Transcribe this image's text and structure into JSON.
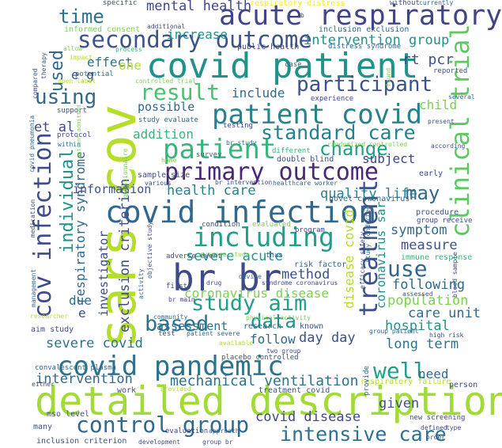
{
  "words": [
    {
      "text": "detailed description",
      "color": "#a2da37"
    },
    {
      "text": "sars cov",
      "color": "#b5de2b"
    },
    {
      "text": "covid patient",
      "color": "#21918c"
    },
    {
      "text": "br br",
      "color": "#3e4a89"
    },
    {
      "text": "covid infection",
      "color": "#31688e"
    },
    {
      "text": "acute respiratory",
      "color": "#414487"
    },
    {
      "text": "secondary outcome",
      "color": "#3b528b"
    },
    {
      "text": "primary outcome",
      "color": "#482878"
    },
    {
      "text": "patient covid",
      "color": "#26828e"
    },
    {
      "text": "covid pandemic",
      "color": "#2c728e"
    },
    {
      "text": "patient",
      "color": "#35b779"
    },
    {
      "text": "including",
      "color": "#1fa088"
    },
    {
      "text": "clinical trial",
      "color": "#5ec962"
    },
    {
      "text": "treatment",
      "color": "#3b528b"
    },
    {
      "text": "cov infection",
      "color": "#3e4a89"
    },
    {
      "text": "control group",
      "color": "#31688e"
    },
    {
      "text": "intensive care",
      "color": "#2c728e"
    },
    {
      "text": "study aim",
      "color": "#1fa088"
    },
    {
      "text": "based",
      "color": "#2c728e"
    },
    {
      "text": "participant",
      "color": "#3b528b"
    },
    {
      "text": "standard care",
      "color": "#26828e"
    },
    {
      "text": "result",
      "color": "#4ac16d"
    },
    {
      "text": "using",
      "color": "#31688e"
    },
    {
      "text": "time",
      "color": "#2c728e"
    },
    {
      "text": "change",
      "color": "#1f9e89"
    },
    {
      "text": "use",
      "color": "#31688e"
    },
    {
      "text": "well",
      "color": "#1fa088"
    },
    {
      "text": "data",
      "color": "#21918c"
    },
    {
      "text": "may",
      "color": "#31688e"
    },
    {
      "text": "mechanical ventilation",
      "color": "#2c728e"
    },
    {
      "text": "individual",
      "color": "#21918c"
    },
    {
      "text": "coronavirus disease",
      "color": "#7ad151"
    },
    {
      "text": "used",
      "color": "#31688e"
    },
    {
      "text": "mental health",
      "color": "#3e4a89"
    },
    {
      "text": "intervention group",
      "color": "#21918c"
    },
    {
      "text": "rt pcr",
      "color": "#3b528b"
    },
    {
      "text": "health care",
      "color": "#26828e"
    },
    {
      "text": "quality life",
      "color": "#26828e"
    },
    {
      "text": "severe acute",
      "color": "#21918c"
    },
    {
      "text": "exclusion criterion",
      "color": "#3e4a89"
    },
    {
      "text": "respiratory syndrome",
      "color": "#31688e"
    },
    {
      "text": "severe covid",
      "color": "#2c728e"
    },
    {
      "text": "intervention",
      "color": "#31688e"
    },
    {
      "text": "covid disease",
      "color": "#3e4a89"
    },
    {
      "text": "long term",
      "color": "#2c728e"
    },
    {
      "text": "day day",
      "color": "#3b528b"
    },
    {
      "text": "population",
      "color": "#7ad151"
    },
    {
      "text": "hospital",
      "color": "#21918c"
    },
    {
      "text": "care unit",
      "color": "#31688e"
    },
    {
      "text": "following",
      "color": "#31688e"
    },
    {
      "text": "measure",
      "color": "#3b528b"
    },
    {
      "text": "symptom",
      "color": "#31688e"
    },
    {
      "text": "method",
      "color": "#3b528b"
    },
    {
      "text": "information",
      "color": "#3b528b"
    },
    {
      "text": "assessment",
      "color": "#2c728e"
    },
    {
      "text": "investigator",
      "color": "#3e4a89"
    },
    {
      "text": "follow",
      "color": "#31688e"
    },
    {
      "text": "given",
      "color": "#3b528b"
    },
    {
      "text": "need",
      "color": "#31688e"
    },
    {
      "text": "child",
      "color": "#7ad151"
    },
    {
      "text": "subject",
      "color": "#414487"
    },
    {
      "text": "increase",
      "color": "#21918c"
    },
    {
      "text": "effect",
      "color": "#2c728e"
    },
    {
      "text": "addition",
      "color": "#35b779"
    },
    {
      "text": "possible",
      "color": "#31688e"
    },
    {
      "text": "include",
      "color": "#31688e"
    },
    {
      "text": "et al",
      "color": "#3e4a89"
    },
    {
      "text": "e g",
      "color": "#3b528b"
    },
    {
      "text": "one",
      "color": "#b5de2b"
    },
    {
      "text": "due",
      "color": "#31688e"
    },
    {
      "text": "e",
      "color": "#3e4a89"
    },
    {
      "text": "disease covid",
      "color": "#b5de2b"
    },
    {
      "text": "coronavirus sar",
      "color": "#21918c"
    },
    {
      "text": "respiratory distress",
      "color": "#fde725"
    },
    {
      "text": "informed consent",
      "color": "#7ad151"
    },
    {
      "text": "inclusion exclusion",
      "color": "#31688e"
    },
    {
      "text": "public health",
      "color": "#3e4a89"
    },
    {
      "text": "distress syndrome",
      "color": "#31688e"
    },
    {
      "text": "study evaluate",
      "color": "#31688e"
    },
    {
      "text": "sample size",
      "color": "#3e4a89"
    },
    {
      "text": "double blind",
      "color": "#3e4a89"
    },
    {
      "text": "novel coronavirus",
      "color": "#31688e"
    },
    {
      "text": "risk factor",
      "color": "#31688e"
    },
    {
      "text": "immune response",
      "color": "#35b779"
    },
    {
      "text": "research",
      "color": "#31688e"
    },
    {
      "text": "known",
      "color": "#3b528b"
    },
    {
      "text": "work",
      "color": "#3e4a89"
    },
    {
      "text": "treatment covid",
      "color": "#3b528b"
    },
    {
      "text": "respiratory failure",
      "color": "#b5de2b"
    },
    {
      "text": "person",
      "color": "#3e4a89"
    },
    {
      "text": "new screening",
      "color": "#3e4a89"
    },
    {
      "text": "inclusion criterion",
      "color": "#3b528b"
    },
    {
      "text": "many",
      "color": "#3b528b"
    },
    {
      "text": "mso level",
      "color": "#3b528b"
    },
    {
      "text": "convalescent plasma",
      "color": "#31688e"
    },
    {
      "text": "aim study",
      "color": "#3e4a89"
    },
    {
      "text": "specific",
      "color": "#3b528b"
    },
    {
      "text": "without",
      "color": "#3b528b"
    },
    {
      "text": "currently",
      "color": "#31688e"
    },
    {
      "text": "process",
      "color": "#35b779"
    },
    {
      "text": "additional",
      "color": "#3e4a89"
    },
    {
      "text": "allow",
      "color": "#7ad151"
    },
    {
      "text": "impact",
      "color": "#b5de2b"
    },
    {
      "text": "case",
      "color": "#31688e"
    },
    {
      "text": "potential",
      "color": "#31688e"
    },
    {
      "text": "reported",
      "color": "#3b528b"
    },
    {
      "text": "experience",
      "color": "#3e4a89"
    },
    {
      "text": "controlled trial",
      "color": "#7ad151"
    },
    {
      "text": "several",
      "color": "#31688e"
    },
    {
      "text": "present",
      "color": "#3b528b"
    },
    {
      "text": "support",
      "color": "#3b528b"
    },
    {
      "text": "testing",
      "color": "#3e4a89"
    },
    {
      "text": "br study",
      "color": "#31688e"
    },
    {
      "text": "randomized controlled",
      "color": "#7ad151"
    },
    {
      "text": "protocol",
      "color": "#3e4a89"
    },
    {
      "text": "within",
      "color": "#31688e"
    },
    {
      "text": "different",
      "color": "#35b779"
    },
    {
      "text": "according",
      "color": "#3b528b"
    },
    {
      "text": "survey",
      "color": "#31688e"
    },
    {
      "text": "home",
      "color": "#7ad151"
    },
    {
      "text": "early",
      "color": "#3e4a89"
    },
    {
      "text": "various",
      "color": "#3b528b"
    },
    {
      "text": "br intervention",
      "color": "#3e4a89"
    },
    {
      "text": "healthcare worker",
      "color": "#31688e"
    },
    {
      "text": "procedure",
      "color": "#3b528b"
    },
    {
      "text": "group receive",
      "color": "#3e4a89"
    },
    {
      "text": "condition",
      "color": "#3e4a89"
    },
    {
      "text": "evaluated",
      "color": "#7ad151"
    },
    {
      "text": "program",
      "color": "#3e4a89"
    },
    {
      "text": "purpose study",
      "color": "#7ad151"
    },
    {
      "text": "thus",
      "color": "#31688e"
    },
    {
      "text": "adverse event",
      "color": "#3e4a89"
    },
    {
      "text": "device",
      "color": "#31688e"
    },
    {
      "text": "drug",
      "color": "#3b528b"
    },
    {
      "text": "syndrome coronavirus",
      "color": "#3e4a89"
    },
    {
      "text": "first",
      "color": "#3b528b"
    },
    {
      "text": "br main",
      "color": "#3e4a89"
    },
    {
      "text": "community",
      "color": "#31688e"
    },
    {
      "text": "physical activity",
      "color": "#7ad151"
    },
    {
      "text": "patient severe",
      "color": "#31688e"
    },
    {
      "text": "test",
      "color": "#3b528b"
    },
    {
      "text": "available",
      "color": "#b5de2b"
    },
    {
      "text": "two group",
      "color": "#3e4a89"
    },
    {
      "text": "group patient",
      "color": "#31688e"
    },
    {
      "text": "high risk",
      "color": "#3e4a89"
    },
    {
      "text": "assessed",
      "color": "#3b528b"
    },
    {
      "text": "provide",
      "color": "#31688e"
    },
    {
      "text": "placebo controlled",
      "color": "#3b528b"
    },
    {
      "text": "either",
      "color": "#3b528b"
    },
    {
      "text": "provided",
      "color": "#b5de2b"
    },
    {
      "text": "evaluation",
      "color": "#3e4a89"
    },
    {
      "text": "approach",
      "color": "#31688e"
    },
    {
      "text": "development",
      "color": "#3e4a89"
    },
    {
      "text": "group br",
      "color": "#3b528b"
    },
    {
      "text": "defined",
      "color": "#3e4a89"
    },
    {
      "text": "order",
      "color": "#3b528b"
    },
    {
      "text": "type",
      "color": "#3e4a89"
    },
    {
      "text": "researcher",
      "color": "#b5de2b"
    },
    {
      "text": "management",
      "color": "#31688e"
    },
    {
      "text": "activity",
      "color": "#31688e"
    },
    {
      "text": "objective study",
      "color": "#3b528b"
    },
    {
      "text": "medication",
      "color": "#3e4a89"
    },
    {
      "text": "questionnaire",
      "color": "#7ad151"
    },
    {
      "text": "covid pneumonia",
      "color": "#31688e"
    },
    {
      "text": "compared",
      "color": "#3b528b"
    },
    {
      "text": "therapy",
      "color": "#3b528b"
    },
    {
      "text": "open label",
      "color": "#b5de2b"
    },
    {
      "text": "efficacy safety",
      "color": "#3e4a89"
    },
    {
      "text": "study conducted",
      "color": "#31688e"
    },
    {
      "text": "blood sample",
      "color": "#3e4a89"
    },
    {
      "text": "found",
      "color": "#7ad151"
    },
    {
      "text": "patient admitted",
      "color": "#7ad151"
    },
    {
      "text": "b",
      "color": "#3e4a89"
    }
  ]
}
